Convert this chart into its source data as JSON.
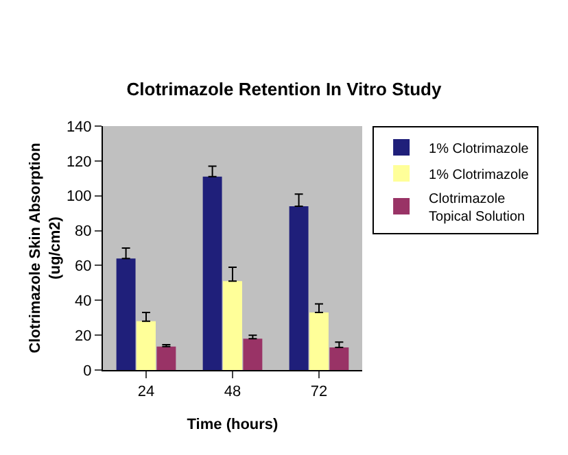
{
  "chart_data": {
    "type": "bar",
    "title": "Clotrimazole Retention In Vitro Study",
    "xlabel": "Time (hours)",
    "ylabel": "Clotrimazole Skin Absorption (ug/cm2)",
    "categories": [
      "24",
      "48",
      "72"
    ],
    "series": [
      {
        "name": "1% Clotrimazole",
        "color": "#1f1f7a",
        "values": [
          64,
          111,
          94
        ],
        "errors": [
          6,
          6,
          7
        ]
      },
      {
        "name": "1% Clotrimazole",
        "color": "#ffff99",
        "values": [
          28,
          51,
          33
        ],
        "errors": [
          5,
          8,
          5
        ]
      },
      {
        "name": "Clotrimazole Topical Solution",
        "color": "#993366",
        "values": [
          13.5,
          18,
          13
        ],
        "errors": [
          1,
          2,
          3
        ]
      }
    ],
    "ylim": [
      0,
      140
    ],
    "yticks": [
      0,
      20,
      40,
      60,
      80,
      100,
      120,
      140
    ],
    "grid": false,
    "legend": "right"
  }
}
